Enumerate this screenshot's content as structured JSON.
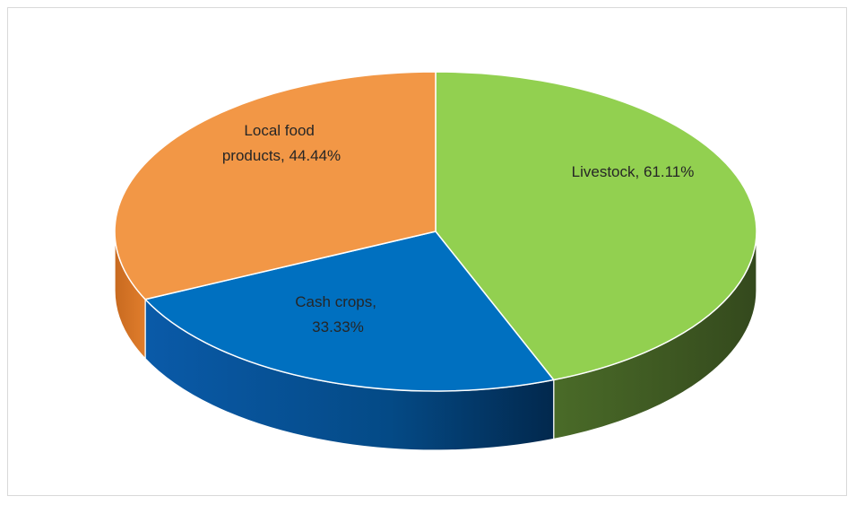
{
  "chart_data": {
    "type": "pie",
    "style": "3d",
    "title": "",
    "slices": [
      {
        "name": "Livestock",
        "value": 61.11,
        "label": "Livestock, 61.11%",
        "color": "#92d050"
      },
      {
        "name": "Cash crops",
        "value": 33.33,
        "label": "Cash crops, 33.33%",
        "label_lines": [
          "Cash crops,",
          "33.33%"
        ],
        "color": "#0070c0"
      },
      {
        "name": "Local food products",
        "value": 44.44,
        "label": "Local food products, 44.44%",
        "label_lines": [
          "Local food",
          "products, 44.44%"
        ],
        "color": "#f29746"
      }
    ],
    "legend": "none"
  }
}
